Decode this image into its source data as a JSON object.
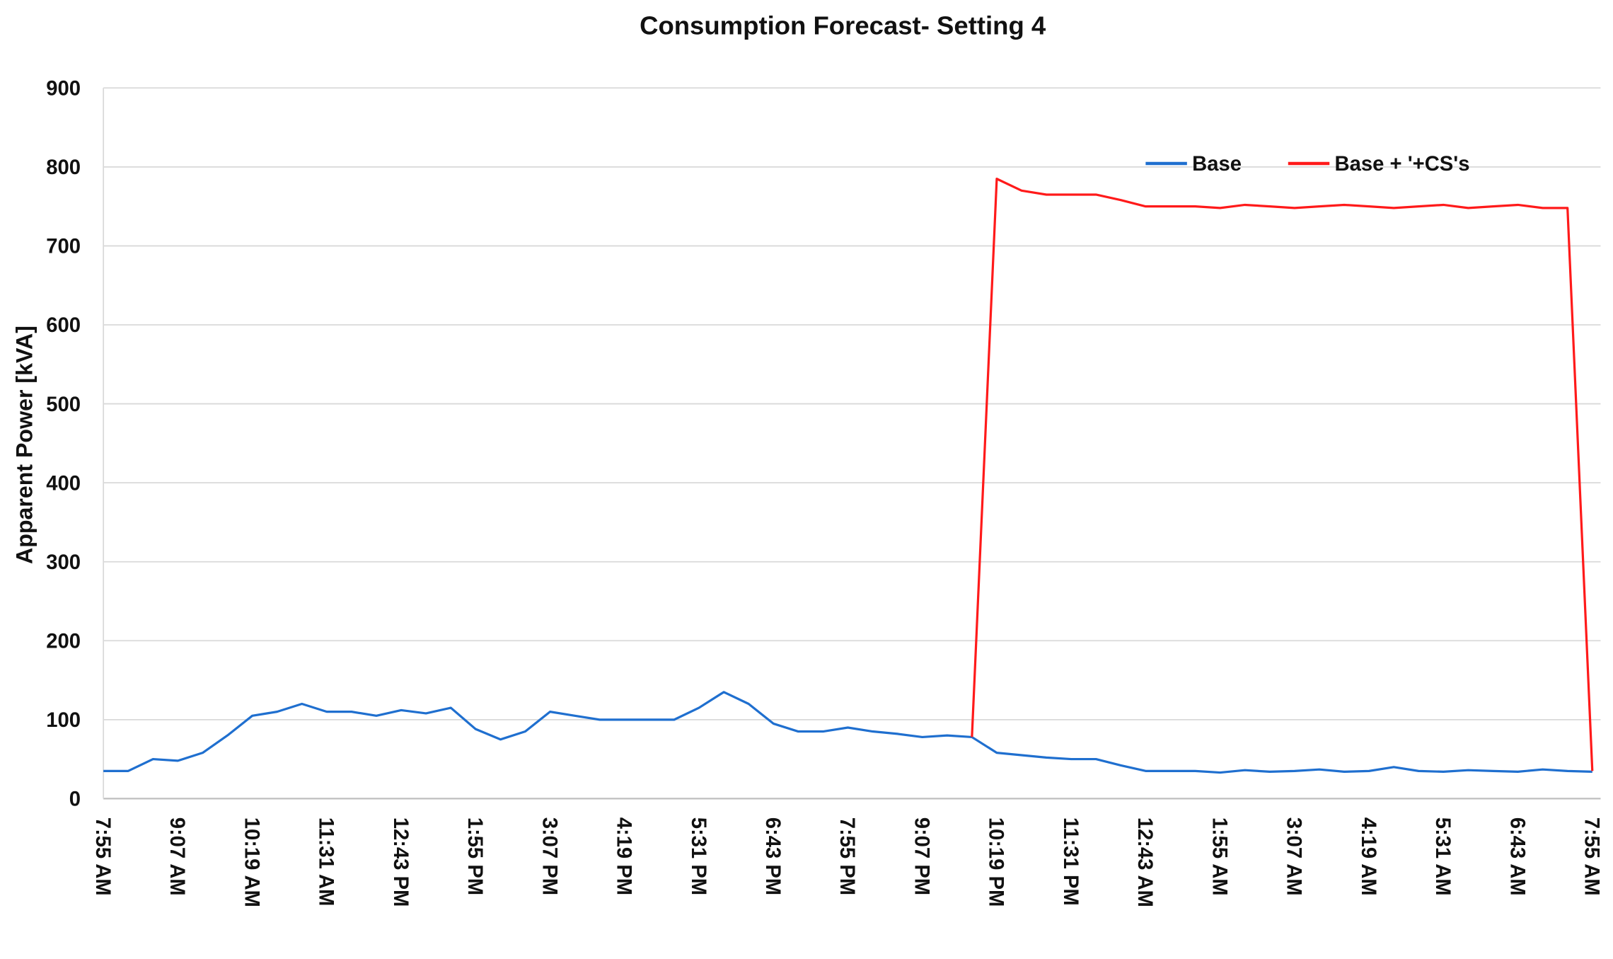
{
  "chart_data": {
    "type": "line",
    "title": "Consumption Forecast- Setting 4",
    "y_label": "Apparent Power [kVA]",
    "categories": [
      "7:55 AM",
      null,
      null,
      "9:07 AM",
      null,
      null,
      "10:19 AM",
      null,
      null,
      "11:31 AM",
      null,
      null,
      "12:43 PM",
      null,
      null,
      "1:55 PM",
      null,
      null,
      "3:07 PM",
      null,
      null,
      "4:19 PM",
      null,
      null,
      "5:31 PM",
      null,
      null,
      "6:43 PM",
      null,
      null,
      "7:55 PM",
      null,
      null,
      "9:07 PM",
      null,
      null,
      "10:19 PM",
      null,
      null,
      "11:31 PM",
      null,
      null,
      "12:43 AM",
      null,
      null,
      "1:55 AM",
      null,
      null,
      "3:07 AM",
      null,
      null,
      "4:19 AM",
      null,
      null,
      "5:31 AM",
      null,
      null,
      "6:43 AM",
      null,
      null,
      "7:55 AM"
    ],
    "series": [
      {
        "name": "Base",
        "color": "#1f6fcf",
        "values": [
          35,
          35,
          50,
          48,
          58,
          80,
          105,
          110,
          120,
          110,
          110,
          105,
          112,
          108,
          115,
          88,
          75,
          85,
          110,
          105,
          100,
          100,
          100,
          100,
          115,
          135,
          120,
          95,
          85,
          85,
          90,
          85,
          82,
          78,
          80,
          78,
          58,
          55,
          52,
          50,
          50,
          42,
          35,
          35,
          35,
          33,
          36,
          34,
          35,
          37,
          34,
          35,
          40,
          35,
          34,
          36,
          35,
          34,
          37,
          35,
          34
        ]
      },
      {
        "name": "Base + '+CS's",
        "color": "#ff1a1a",
        "values": [
          null,
          null,
          null,
          null,
          null,
          null,
          null,
          null,
          null,
          null,
          null,
          null,
          null,
          null,
          null,
          null,
          null,
          null,
          null,
          null,
          null,
          null,
          null,
          null,
          null,
          null,
          null,
          null,
          null,
          null,
          null,
          null,
          null,
          null,
          null,
          78,
          785,
          770,
          765,
          765,
          765,
          758,
          750,
          750,
          750,
          748,
          752,
          750,
          748,
          750,
          752,
          750,
          748,
          750,
          752,
          748,
          750,
          752,
          748,
          748,
          35
        ]
      }
    ],
    "ylim": [
      0,
      900
    ],
    "yticks": [
      0,
      100,
      200,
      300,
      400,
      500,
      600,
      700,
      800,
      900
    ],
    "grid": true,
    "legend": "upper right"
  }
}
